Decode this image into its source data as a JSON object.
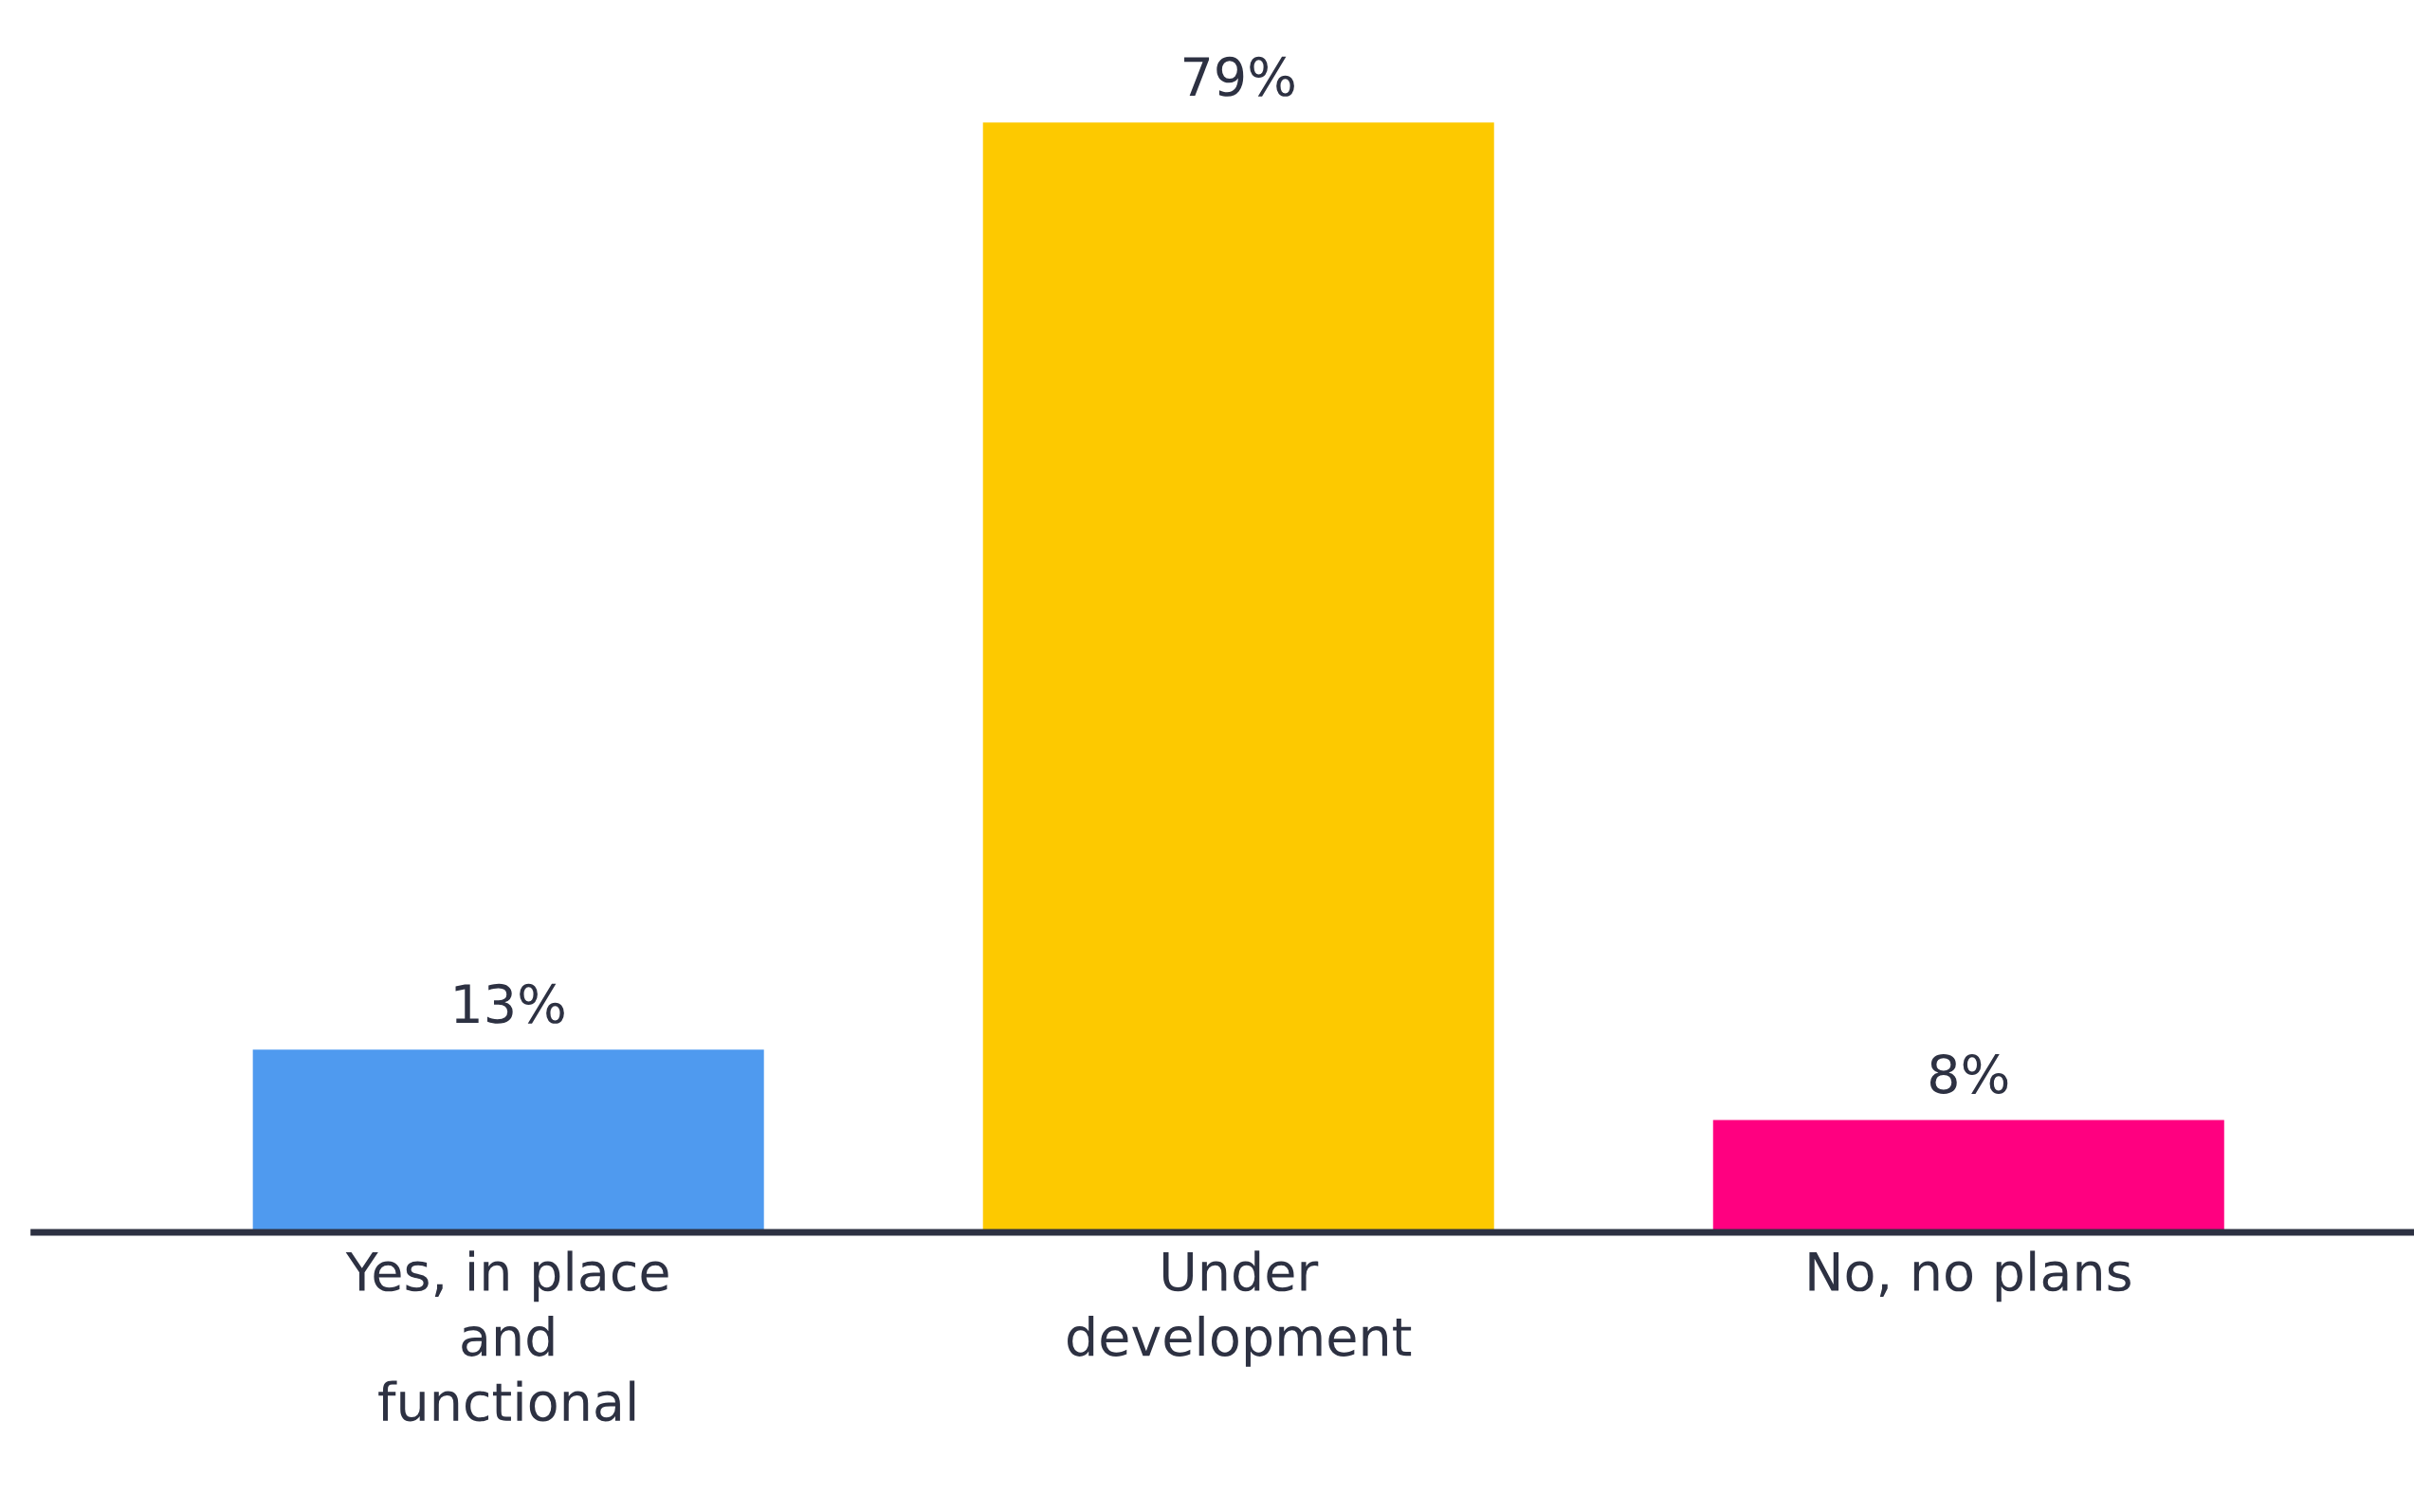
{
  "chart_data": {
    "type": "bar",
    "categories": [
      "Yes, in place\nand\nfunctional",
      "Under\ndevelopment",
      "No, no plans"
    ],
    "values": [
      13,
      79,
      8
    ],
    "colors": [
      "#4f9aef",
      "#fdc900",
      "#ff0080"
    ],
    "value_labels": [
      "13%",
      "79%",
      "8%"
    ],
    "grid": false,
    "legend": false
  }
}
